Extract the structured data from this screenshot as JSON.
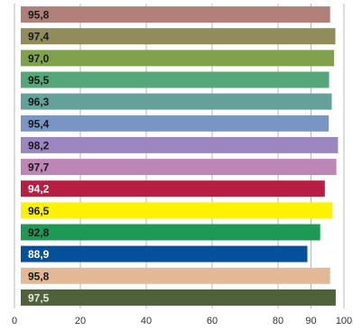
{
  "chart_data": {
    "type": "bar",
    "orientation": "horizontal",
    "xlim": [
      0,
      100
    ],
    "grid": true,
    "xticks": [
      "0",
      "20",
      "40",
      "60",
      "80",
      "90",
      "100"
    ],
    "xtick_values": [
      0,
      20,
      40,
      60,
      80,
      90,
      100
    ],
    "bars": [
      {
        "value": 95.8,
        "label": "95,8",
        "color": "#B07F78",
        "label_color": "#1a1a1a"
      },
      {
        "value": 97.4,
        "label": "97,4",
        "color": "#928B5C",
        "label_color": "#1a1a1a"
      },
      {
        "value": 97.0,
        "label": "97,0",
        "color": "#7FA24B",
        "label_color": "#1a1a1a"
      },
      {
        "value": 95.5,
        "label": "95,5",
        "color": "#55A77A",
        "label_color": "#1a1a1a"
      },
      {
        "value": 96.3,
        "label": "96,3",
        "color": "#66A09A",
        "label_color": "#1a1a1a"
      },
      {
        "value": 95.4,
        "label": "95,4",
        "color": "#7895C4",
        "label_color": "#1a1a1a"
      },
      {
        "value": 98.2,
        "label": "98,2",
        "color": "#9B86C2",
        "label_color": "#1a1a1a"
      },
      {
        "value": 97.7,
        "label": "97,7",
        "color": "#BD86B6",
        "label_color": "#1a1a1a"
      },
      {
        "value": 94.2,
        "label": "94,2",
        "color": "#B81E41",
        "label_color": "#ffffff"
      },
      {
        "value": 96.5,
        "label": "96,5",
        "color": "#FFF200",
        "label_color": "#1a1a1a"
      },
      {
        "value": 92.8,
        "label": "92,8",
        "color": "#1E9953",
        "label_color": "#1a1a1a"
      },
      {
        "value": 88.9,
        "label": "88,9",
        "color": "#05509A",
        "label_color": "#ffffff"
      },
      {
        "value": 95.8,
        "label": "95,8",
        "color": "#E3B897",
        "label_color": "#1a1a1a"
      },
      {
        "value": 97.5,
        "label": "97,5",
        "color": "#4E6138",
        "label_color": "#e8e8d8"
      }
    ]
  }
}
